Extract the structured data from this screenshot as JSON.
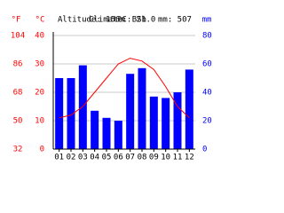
{
  "chart_data": {
    "type": "bar",
    "header": [
      "Altitude: 156m",
      "Climate: BSh",
      "°C: 21.0",
      "mm: 507"
    ],
    "f_label": "°F",
    "y_label": "°C",
    "y2_label": "mm",
    "categories": [
      "01",
      "02",
      "03",
      "04",
      "05",
      "06",
      "07",
      "08",
      "09",
      "10",
      "11",
      "12"
    ],
    "series": [
      {
        "type": "bar",
        "axis": "y2",
        "color": "#0000ff",
        "values": [
          50,
          50,
          59,
          27,
          22,
          20,
          53,
          57,
          37,
          36,
          40,
          56
        ]
      },
      {
        "type": "line",
        "axis": "y",
        "color": "#ff0000",
        "values": [
          11,
          12,
          15,
          20,
          25,
          30,
          32,
          31,
          28,
          22,
          15,
          11
        ]
      }
    ],
    "ylim": [
      0,
      40
    ],
    "yticks": [
      0,
      10,
      20,
      30,
      40
    ],
    "flim": [
      32,
      104
    ],
    "fticks": [
      32,
      50,
      68,
      86,
      104
    ],
    "y2lim": [
      0,
      80
    ],
    "y2ticks": [
      0,
      20,
      40,
      60,
      80
    ],
    "grid": true
  }
}
